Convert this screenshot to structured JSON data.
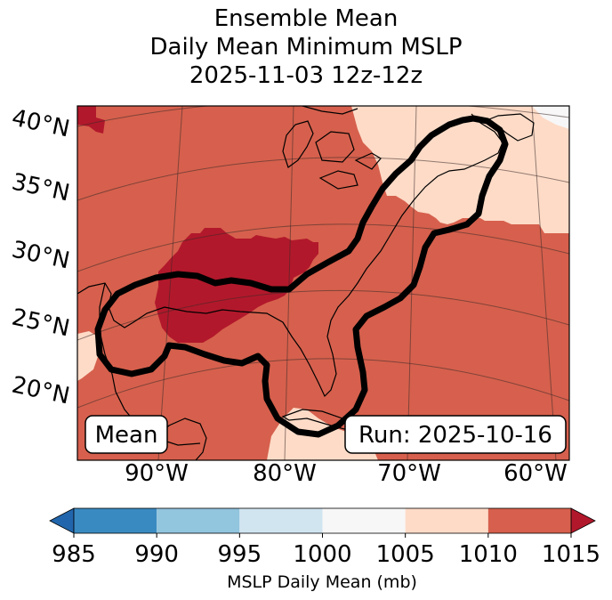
{
  "chart_data": {
    "type": "heatmap",
    "title_lines": [
      "Ensemble Mean",
      "Daily Mean Minimum MSLP",
      "2025-11-03 12z-12z"
    ],
    "latitude_labels": [
      "40°N",
      "35°N",
      "30°N",
      "25°N",
      "20°N"
    ],
    "longitude_labels": [
      "90°W",
      "80°W",
      "70°W",
      "60°W"
    ],
    "annotations": {
      "left": "Mean",
      "right": "Run: 2025-10-16"
    },
    "colorbar": {
      "label": "MSLP Daily Mean (mb)",
      "ticks": [
        "985",
        "990",
        "995",
        "1000",
        "1005",
        "1010",
        "1015"
      ],
      "bins": [
        {
          "range": [
            985,
            990
          ],
          "color": "#3a8ac2"
        },
        {
          "range": [
            990,
            995
          ],
          "color": "#92c5de"
        },
        {
          "range": [
            995,
            1000
          ],
          "color": "#d1e5f0"
        },
        {
          "range": [
            1000,
            1005
          ],
          "color": "#f7f7f7"
        },
        {
          "range": [
            1005,
            1010
          ],
          "color": "#fddbc7"
        },
        {
          "range": [
            1010,
            1015
          ],
          "color": "#d6604d"
        }
      ],
      "under_color": "#2166ac",
      "over_color": "#b2182b",
      "extend": "both"
    },
    "region_classes": {
      "background": "1010-1015 mb",
      "central_gulf_core": ">1015 mb",
      "northeast_coast_and_edges": "1005-1010 mb"
    }
  }
}
